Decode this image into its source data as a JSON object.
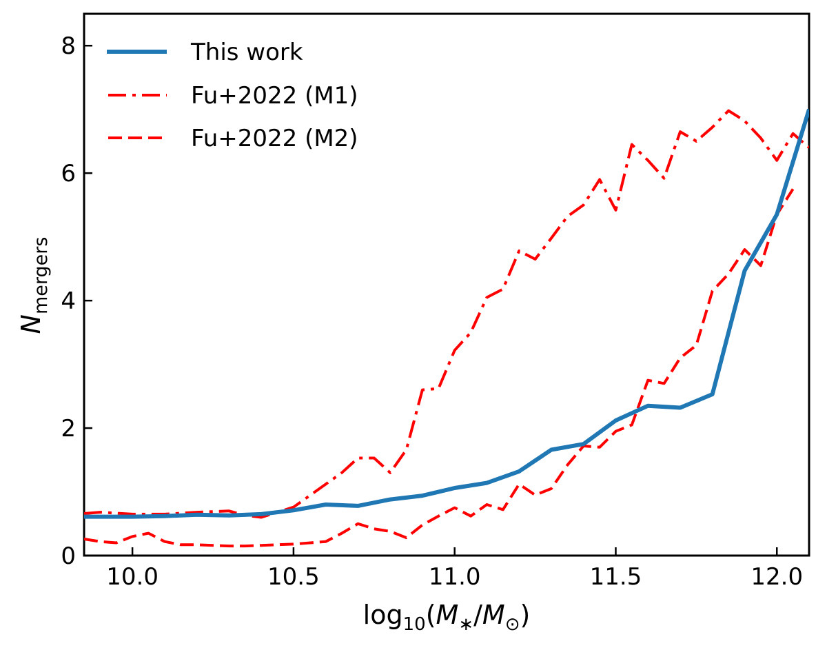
{
  "chart_data": {
    "type": "line",
    "title": "",
    "xlabel": {
      "prefix": "log",
      "sub": "10",
      "open": "(",
      "M1": "M",
      "s1": "∗",
      "slash": "/",
      "M2": "M",
      "s2": "⊙",
      "close": ")"
    },
    "ylabel": {
      "main": "N",
      "sub": "mergers"
    },
    "xlim": [
      9.85,
      12.1
    ],
    "ylim": [
      0,
      8.5
    ],
    "xticks": [
      10.0,
      10.5,
      11.0,
      11.5,
      12.0
    ],
    "xtick_labels": [
      "10.0",
      "10.5",
      "11.0",
      "11.5",
      "12.0"
    ],
    "yticks": [
      0,
      2,
      4,
      6,
      8
    ],
    "ytick_labels": [
      "0",
      "2",
      "4",
      "6",
      "8"
    ],
    "grid": false,
    "legend_position": "top-left",
    "series": [
      {
        "name": "This work",
        "color": "#1f77b4",
        "style": "solid",
        "x": [
          9.85,
          10.0,
          10.1,
          10.2,
          10.3,
          10.4,
          10.5,
          10.6,
          10.7,
          10.8,
          10.9,
          11.0,
          11.1,
          11.2,
          11.3,
          11.4,
          11.5,
          11.6,
          11.7,
          11.8,
          11.9,
          12.0,
          12.1
        ],
        "y": [
          0.61,
          0.61,
          0.62,
          0.64,
          0.63,
          0.65,
          0.71,
          0.8,
          0.78,
          0.88,
          0.94,
          1.06,
          1.14,
          1.32,
          1.66,
          1.75,
          2.12,
          2.35,
          2.32,
          2.53,
          4.47,
          5.35,
          7.0
        ]
      },
      {
        "name": "Fu+2022 (M1)",
        "color": "#ff0000",
        "style": "dashdot",
        "x": [
          9.85,
          9.9,
          10.0,
          10.1,
          10.2,
          10.3,
          10.35,
          10.4,
          10.5,
          10.6,
          10.65,
          10.7,
          10.75,
          10.8,
          10.85,
          10.9,
          10.95,
          11.0,
          11.05,
          11.1,
          11.15,
          11.2,
          11.25,
          11.3,
          11.35,
          11.4,
          11.45,
          11.5,
          11.55,
          11.6,
          11.65,
          11.7,
          11.75,
          11.8,
          11.85,
          11.9,
          11.95,
          12.0,
          12.05,
          12.1
        ],
        "y": [
          0.66,
          0.68,
          0.65,
          0.65,
          0.68,
          0.7,
          0.63,
          0.6,
          0.76,
          1.12,
          1.3,
          1.53,
          1.53,
          1.3,
          1.66,
          2.6,
          2.62,
          3.22,
          3.5,
          4.05,
          4.18,
          4.78,
          4.65,
          4.98,
          5.32,
          5.5,
          5.9,
          5.42,
          6.45,
          6.2,
          5.92,
          6.65,
          6.5,
          6.72,
          6.98,
          6.82,
          6.55,
          6.2,
          6.62,
          6.4
        ]
      },
      {
        "name": "Fu+2022 (M2)",
        "color": "#ff0000",
        "style": "dashed",
        "x": [
          9.85,
          9.9,
          9.95,
          10.0,
          10.05,
          10.1,
          10.15,
          10.2,
          10.3,
          10.35,
          10.4,
          10.5,
          10.6,
          10.65,
          10.7,
          10.75,
          10.8,
          10.85,
          10.9,
          10.95,
          11.0,
          11.05,
          11.1,
          11.15,
          11.2,
          11.25,
          11.3,
          11.35,
          11.4,
          11.45,
          11.5,
          11.55,
          11.6,
          11.65,
          11.7,
          11.75,
          11.8,
          11.85,
          11.9,
          11.95,
          12.0,
          12.05
        ],
        "y": [
          0.26,
          0.22,
          0.2,
          0.3,
          0.35,
          0.22,
          0.17,
          0.17,
          0.15,
          0.15,
          0.16,
          0.18,
          0.22,
          0.35,
          0.5,
          0.42,
          0.38,
          0.28,
          0.48,
          0.62,
          0.75,
          0.62,
          0.8,
          0.72,
          1.12,
          0.95,
          1.05,
          1.42,
          1.72,
          1.7,
          1.95,
          2.05,
          2.75,
          2.7,
          3.1,
          3.3,
          4.15,
          4.42,
          4.8,
          4.55,
          5.35,
          5.75
        ]
      }
    ]
  }
}
